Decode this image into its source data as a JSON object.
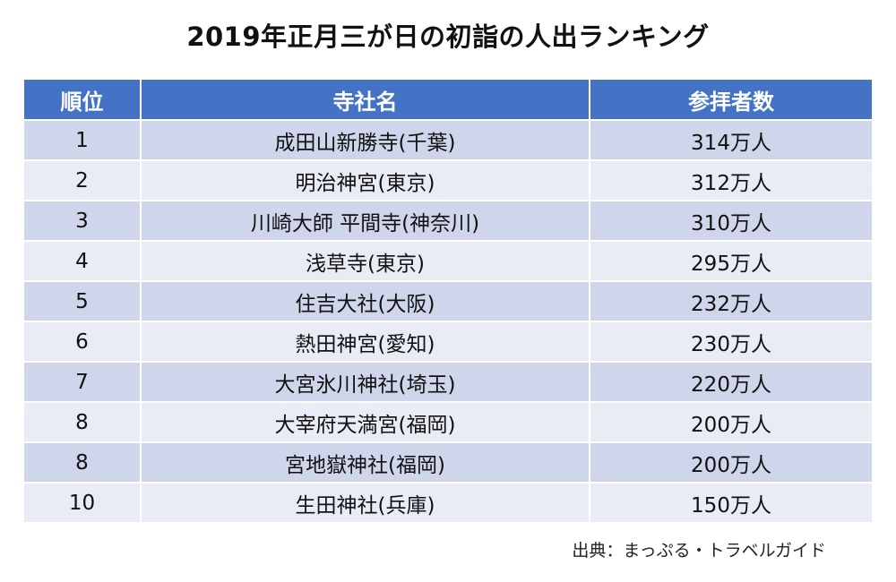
{
  "title": "2019年正月三が日の初詣の人出ランキング",
  "colors": {
    "header_bg": "#4472C4",
    "row_odd": "#CFD5EA",
    "row_even": "#E9EBF5"
  },
  "table": {
    "headers": [
      "順位",
      "寺社名",
      "参拝者数"
    ],
    "rows": [
      [
        "1",
        "成田山新勝寺(千葉)",
        "314万人"
      ],
      [
        "2",
        "明治神宮(東京)",
        "312万人"
      ],
      [
        "3",
        "川崎大師 平間寺(神奈川)",
        "310万人"
      ],
      [
        "4",
        "浅草寺(東京)",
        "295万人"
      ],
      [
        "5",
        "住吉大社(大阪)",
        "232万人"
      ],
      [
        "6",
        "熱田神宮(愛知)",
        "230万人"
      ],
      [
        "7",
        "大宮氷川神社(埼玉)",
        "220万人"
      ],
      [
        "8",
        "大宰府天満宮(福岡)",
        "200万人"
      ],
      [
        "8",
        "宮地嶽神社(福岡)",
        "200万人"
      ],
      [
        "10",
        "生田神社(兵庫)",
        "150万人"
      ]
    ]
  },
  "source": "出典：まっぷる・トラベルガイド"
}
